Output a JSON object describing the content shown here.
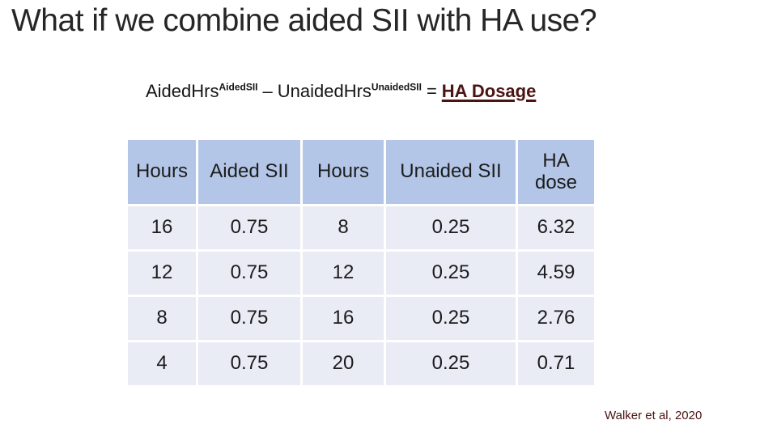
{
  "slide": {
    "title": "What if we combine aided SII with HA use?",
    "formula": {
      "term1_base": "AidedHrs",
      "term1_sup": "AidedSII",
      "minus": "–",
      "term2_base": "UnaidedHrs",
      "term2_sup": "UnaidedSII",
      "equals": "=",
      "result": "HA Dosage"
    },
    "table": {
      "headers": [
        "Hours",
        "Aided SII",
        "Hours",
        "Unaided SII",
        "HA dose"
      ],
      "rows": [
        [
          "16",
          "0.75",
          "8",
          "0.25",
          "6.32"
        ],
        [
          "12",
          "0.75",
          "12",
          "0.25",
          "4.59"
        ],
        [
          "8",
          "0.75",
          "16",
          "0.25",
          "2.76"
        ],
        [
          "4",
          "0.75",
          "20",
          "0.25",
          "0.71"
        ]
      ]
    },
    "citation": "Walker et al, 2020",
    "colors": {
      "header_bg": "#b4c6e7",
      "row_bg": "#e9ebf5",
      "accent_text": "#4a1412"
    }
  }
}
